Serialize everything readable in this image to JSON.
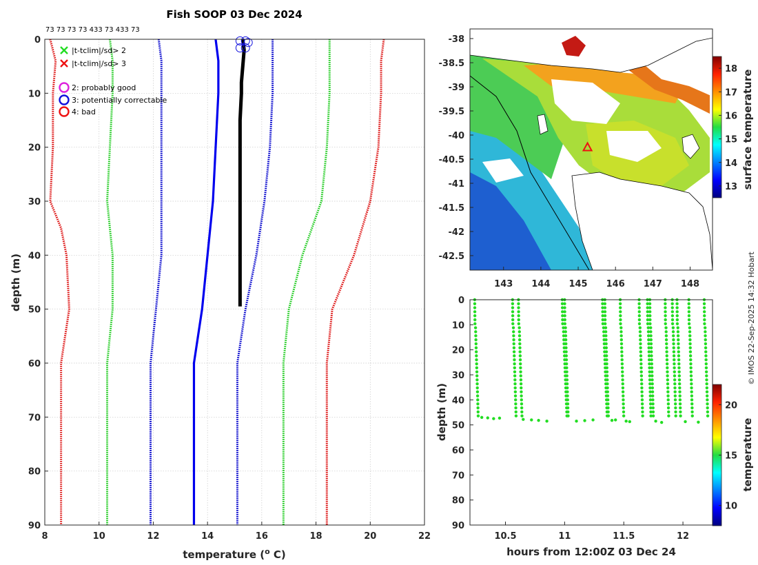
{
  "chart_data": [
    {
      "type": "line",
      "title": "Fish SOOP 03 Dec 2024",
      "xlabel": "temperature (° C)",
      "xlabel_prefix": "temperature (",
      "xlabel_sup": "o",
      "xlabel_suffix": " C)",
      "ylabel": "depth (m)",
      "xlim": [
        8,
        22
      ],
      "ylim": [
        90,
        0
      ],
      "xticks": [
        8,
        10,
        12,
        14,
        16,
        18,
        20,
        22
      ],
      "yticks": [
        0,
        10,
        20,
        30,
        40,
        50,
        60,
        70,
        80,
        90
      ],
      "top_annotation": "73 73 73 73 433 73 433 73",
      "legend": [
        {
          "marker": "x",
          "color": "#22dd22",
          "label": "|t-tclim|/sd> 2"
        },
        {
          "marker": "x",
          "color": "#ee1111",
          "label": "|t-tclim|/sd> 3"
        },
        {
          "marker": "o",
          "color": "#dd22dd",
          "label": "2: probably good"
        },
        {
          "marker": "o",
          "color": "#1111dd",
          "label": "3: potentially correctable"
        },
        {
          "marker": "o",
          "color": "#ee1111",
          "label": "4: bad"
        }
      ],
      "series": [
        {
          "name": "climatology mean",
          "color": "#0000ee",
          "style": "solid",
          "depth": [
            0,
            4,
            10,
            20,
            30,
            40,
            50,
            60,
            90
          ],
          "temp": [
            14.3,
            14.4,
            14.4,
            14.3,
            14.2,
            14.0,
            13.8,
            13.5,
            13.5
          ]
        },
        {
          "name": "clim -1sd",
          "color": "#0000cc",
          "style": "dotted",
          "depth": [
            0,
            4,
            10,
            20,
            30,
            40,
            50,
            60,
            90
          ],
          "temp": [
            12.2,
            12.3,
            12.3,
            12.3,
            12.3,
            12.3,
            12.1,
            11.9,
            11.9
          ]
        },
        {
          "name": "clim +1sd",
          "color": "#0000cc",
          "style": "dotted",
          "depth": [
            0,
            4,
            10,
            20,
            30,
            40,
            50,
            60,
            90
          ],
          "temp": [
            16.4,
            16.4,
            16.4,
            16.3,
            16.1,
            15.8,
            15.4,
            15.1,
            15.1
          ]
        },
        {
          "name": "clim -2sd",
          "color": "#22cc22",
          "style": "dotted",
          "depth": [
            0,
            4,
            10,
            20,
            30,
            40,
            50,
            60,
            90
          ],
          "temp": [
            10.4,
            10.5,
            10.5,
            10.4,
            10.3,
            10.5,
            10.5,
            10.3,
            10.3
          ]
        },
        {
          "name": "clim +2sd",
          "color": "#22cc22",
          "style": "dotted",
          "depth": [
            0,
            4,
            10,
            20,
            30,
            40,
            50,
            60,
            90
          ],
          "temp": [
            18.5,
            18.5,
            18.5,
            18.4,
            18.2,
            17.5,
            17.0,
            16.8,
            16.8
          ]
        },
        {
          "name": "clim -3sd",
          "color": "#dd1111",
          "style": "dotted",
          "depth": [
            0,
            4,
            10,
            20,
            30,
            35,
            40,
            50,
            60,
            90
          ],
          "temp": [
            8.2,
            8.4,
            8.3,
            8.3,
            8.2,
            8.6,
            8.8,
            8.9,
            8.6,
            8.6
          ]
        },
        {
          "name": "clim +3sd",
          "color": "#dd1111",
          "style": "dotted",
          "depth": [
            0,
            4,
            10,
            20,
            30,
            40,
            50,
            60,
            90
          ],
          "temp": [
            20.5,
            20.4,
            20.4,
            20.3,
            20.0,
            19.4,
            18.6,
            18.4,
            18.4
          ]
        },
        {
          "name": "observed profile",
          "color": "#000000",
          "style": "thick",
          "depth": [
            0,
            2,
            5,
            8,
            10,
            15,
            20,
            30,
            40,
            49.5
          ],
          "temp": [
            15.3,
            15.35,
            15.3,
            15.25,
            15.25,
            15.2,
            15.2,
            15.2,
            15.2,
            15.2
          ]
        }
      ],
      "flag_markers": [
        {
          "flag": 3,
          "temp": 15.2,
          "depth": 0.3
        },
        {
          "flag": 3,
          "temp": 15.4,
          "depth": 0.3
        },
        {
          "flag": 3,
          "temp": 15.5,
          "depth": 0.6
        },
        {
          "flag": 3,
          "temp": 15.2,
          "depth": 1.6
        },
        {
          "flag": 3,
          "temp": 15.4,
          "depth": 1.6
        }
      ]
    },
    {
      "type": "heatmap",
      "name": "surface temperature map",
      "xticks": [
        143,
        144,
        145,
        146,
        147,
        148
      ],
      "yticks": [
        -38,
        -38.5,
        -39,
        -39.5,
        -40,
        -40.5,
        -41,
        -41.5,
        -42,
        -42.5
      ],
      "xlim": [
        142.1,
        148.6
      ],
      "ylim": [
        -42.8,
        -37.8
      ],
      "colorbar_label": "surface temperature",
      "colorbar_ticks": [
        13,
        14,
        15,
        16,
        17,
        18
      ],
      "colorbar_range": [
        12.5,
        18.5
      ],
      "marker": {
        "type": "triangle",
        "color": "#ee1111",
        "lon": 145.25,
        "lat": -40.25
      }
    },
    {
      "type": "scatter",
      "name": "depth vs time",
      "xlabel": "hours from 12:00Z 03 Dec 24",
      "ylabel": "depth (m)",
      "xlim": [
        10.2,
        12.25
      ],
      "ylim": [
        90,
        0
      ],
      "xticks": [
        10.5,
        11,
        11.5,
        12
      ],
      "yticks": [
        0,
        10,
        20,
        30,
        40,
        50,
        60,
        70,
        80,
        90
      ],
      "colorbar_label": "temperature",
      "colorbar_ticks": [
        10,
        15,
        20
      ],
      "colorbar_range": [
        8,
        22
      ],
      "point_color": "#22dd22",
      "casts": [
        {
          "t0": 10.24,
          "t1": 10.27
        },
        {
          "t0": 10.56,
          "t1": 10.59
        },
        {
          "t0": 10.61,
          "t1": 10.64
        },
        {
          "t0": 10.98,
          "t1": 11.02
        },
        {
          "t0": 11.0,
          "t1": 11.03
        },
        {
          "t0": 11.32,
          "t1": 11.36
        },
        {
          "t0": 11.34,
          "t1": 11.37
        },
        {
          "t0": 11.47,
          "t1": 11.5
        },
        {
          "t0": 11.63,
          "t1": 11.66
        },
        {
          "t0": 11.7,
          "t1": 11.73
        },
        {
          "t0": 11.72,
          "t1": 11.75
        },
        {
          "t0": 11.85,
          "t1": 11.88
        },
        {
          "t0": 11.91,
          "t1": 11.94
        },
        {
          "t0": 11.95,
          "t1": 11.98
        },
        {
          "t0": 12.05,
          "t1": 12.08
        },
        {
          "t0": 12.18,
          "t1": 12.21
        }
      ],
      "bottom_points": [
        {
          "t": 10.3,
          "d": 47
        },
        {
          "t": 10.35,
          "d": 47.2
        },
        {
          "t": 10.4,
          "d": 47.5
        },
        {
          "t": 10.45,
          "d": 47.3
        },
        {
          "t": 10.65,
          "d": 47.8
        },
        {
          "t": 10.72,
          "d": 48
        },
        {
          "t": 10.78,
          "d": 48.2
        },
        {
          "t": 10.85,
          "d": 48.5
        },
        {
          "t": 11.1,
          "d": 48.5
        },
        {
          "t": 11.17,
          "d": 48.3
        },
        {
          "t": 11.24,
          "d": 48
        },
        {
          "t": 11.4,
          "d": 48.2
        },
        {
          "t": 11.43,
          "d": 48
        },
        {
          "t": 11.52,
          "d": 48.5
        },
        {
          "t": 11.55,
          "d": 48.7
        },
        {
          "t": 11.77,
          "d": 48.5
        },
        {
          "t": 11.82,
          "d": 49
        },
        {
          "t": 12.02,
          "d": 48.7
        },
        {
          "t": 12.13,
          "d": 48.9
        }
      ]
    }
  ],
  "side_note": "© IMOS 22-Sep-2025 14:32 Hobart"
}
